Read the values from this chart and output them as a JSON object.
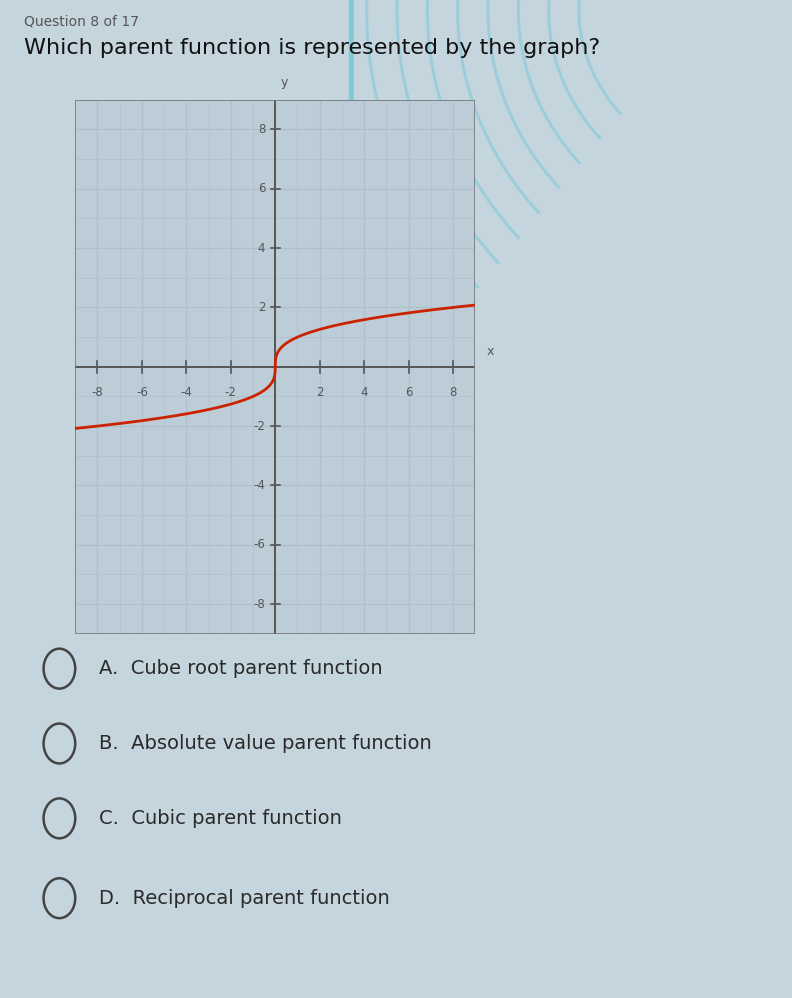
{
  "question_header": "Question 8 of 17",
  "question_text": "Which parent function is represented by the graph?",
  "bg_color": "#c5d5de",
  "graph_bg_color": "#bccdd8",
  "grid_major_color": "#9ab0be",
  "grid_minor_color": "#aec0cc",
  "axis_color": "#555555",
  "curve_color": "#cc2200",
  "curve_linewidth": 2.0,
  "xlim": [
    -9,
    9
  ],
  "ylim": [
    -9,
    9
  ],
  "xticks": [
    -8,
    -6,
    -4,
    -2,
    2,
    4,
    6,
    8
  ],
  "yticks": [
    -8,
    -6,
    -4,
    -2,
    2,
    4,
    6,
    8
  ],
  "tick_fontsize": 8.5,
  "choices": [
    "A.  Cube root parent function",
    "B.  Absolute value parent function",
    "C.  Cubic parent function",
    "D.  Reciprocal parent function"
  ],
  "choice_fontsize": 14,
  "choice_color": "#2a2a2a",
  "header_color": "#555555",
  "question_color": "#111111",
  "question_fontsize": 16
}
